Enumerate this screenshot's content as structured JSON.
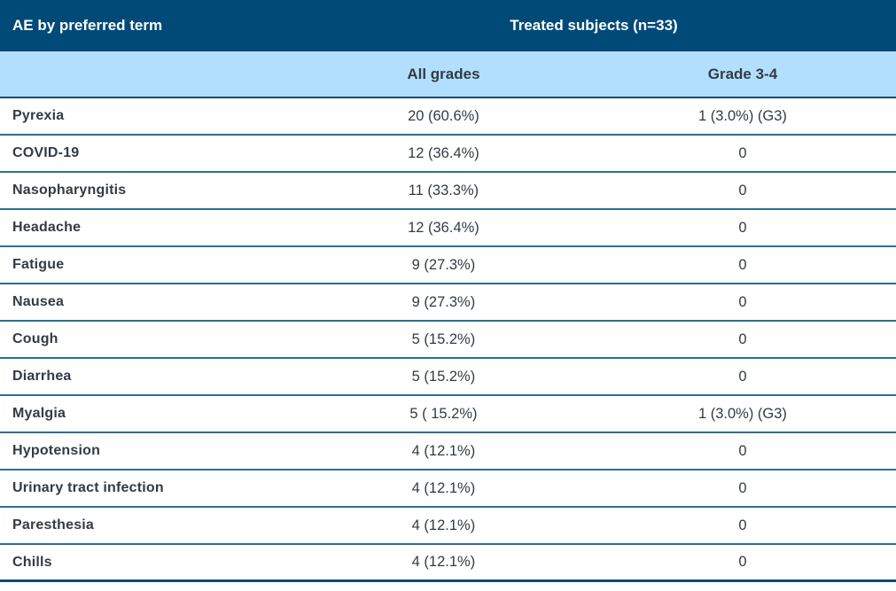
{
  "table": {
    "title_col": "AE by preferred term",
    "span_header": "Treated subjects (n=33)",
    "columns": {
      "all_grades": "All grades",
      "grade_3_4": "Grade 3-4"
    },
    "rows": [
      {
        "term": "Pyrexia",
        "all_grades": "20 (60.6%)",
        "grade_3_4": "1 (3.0%) (G3)"
      },
      {
        "term": "COVID-19",
        "all_grades": "12 (36.4%)",
        "grade_3_4": "0"
      },
      {
        "term": "Nasopharyngitis",
        "all_grades": "11 (33.3%)",
        "grade_3_4": "0"
      },
      {
        "term": "Headache",
        "all_grades": "12 (36.4%)",
        "grade_3_4": "0"
      },
      {
        "term": "Fatigue",
        "all_grades": "9 (27.3%)",
        "grade_3_4": "0"
      },
      {
        "term": "Nausea",
        "all_grades": "9 (27.3%)",
        "grade_3_4": "0"
      },
      {
        "term": "Cough",
        "all_grades": "5 (15.2%)",
        "grade_3_4": "0"
      },
      {
        "term": "Diarrhea",
        "all_grades": "5 (15.2%)",
        "grade_3_4": "0"
      },
      {
        "term": "Myalgia",
        "all_grades": "5 ( 15.2%)",
        "grade_3_4": "1 (3.0%) (G3)"
      },
      {
        "term": "Hypotension",
        "all_grades": "4 (12.1%)",
        "grade_3_4": "0"
      },
      {
        "term": "Urinary tract infection",
        "all_grades": "4 (12.1%)",
        "grade_3_4": "0"
      },
      {
        "term": "Paresthesia",
        "all_grades": "4 (12.1%)",
        "grade_3_4": "0"
      },
      {
        "term": "Chills",
        "all_grades": "4 (12.1%)",
        "grade_3_4": "0"
      }
    ],
    "colors": {
      "header_bg": "#004A78",
      "header_text": "#FFFFFF",
      "subheader_bg": "#B3DFFE",
      "body_text": "#333B45",
      "row_divider": "#2E6E93",
      "heavy_divider": "#16496B"
    }
  }
}
